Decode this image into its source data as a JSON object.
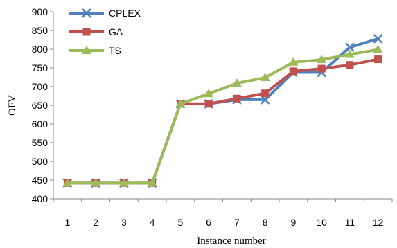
{
  "chart_data": {
    "type": "line",
    "title": "",
    "xlabel": "Instance number",
    "ylabel": "OFV",
    "x": [
      1,
      2,
      3,
      4,
      5,
      6,
      7,
      8,
      9,
      10,
      11,
      12
    ],
    "ylim": [
      400,
      900
    ],
    "yticks": [
      400,
      450,
      500,
      550,
      600,
      650,
      700,
      750,
      800,
      850,
      900
    ],
    "grid": false,
    "legend_position": "top-left",
    "series": [
      {
        "name": "CPLEX",
        "color": "#4F81BD",
        "marker": "x",
        "values": [
          442,
          442,
          442,
          442,
          654,
          654,
          665,
          665,
          738,
          738,
          805,
          828
        ]
      },
      {
        "name": "GA",
        "color": "#C0504D",
        "marker": "square",
        "values": [
          442,
          442,
          442,
          442,
          654,
          654,
          668,
          682,
          741,
          748,
          758,
          773
        ]
      },
      {
        "name": "TS",
        "color": "#9BBB59",
        "marker": "triangle",
        "values": [
          442,
          442,
          442,
          442,
          654,
          681,
          709,
          724,
          765,
          772,
          786,
          799
        ]
      }
    ]
  }
}
